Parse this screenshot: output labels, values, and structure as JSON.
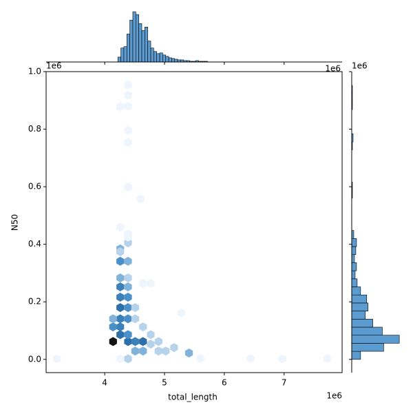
{
  "chart_data": [
    {
      "type": "hexbin",
      "xlabel": "total_length",
      "ylabel": "N50",
      "x_offset_label": "1e6",
      "y_offset_label": "1e6",
      "xlim": [
        3.02,
        7.97
      ],
      "ylim": [
        -0.046,
        1.0
      ],
      "xticks": [
        4,
        5,
        6,
        7
      ],
      "yticks": [
        {
          "value": 0,
          "label": "0.0"
        },
        0.2,
        0.4,
        0.6,
        0.8,
        {
          "value": 1,
          "label": "1.0"
        }
      ],
      "cmap": [
        "#eef5fc",
        "#4a90c8",
        "#1f5f99",
        "#111111"
      ],
      "x": [
        4.14,
        4.39,
        4.64,
        4.51,
        4.26,
        4.39,
        4.26,
        4.14,
        4.39,
        4.26,
        4.14,
        4.39,
        4.26,
        4.39,
        4.26,
        4.39,
        4.26,
        4.39,
        4.26,
        4.39,
        4.26,
        4.26,
        4.39,
        4.26,
        4.39,
        4.9,
        5.02,
        5.41,
        4.77,
        4.9,
        4.64,
        4.51,
        4.64,
        4.77,
        4.51,
        4.77,
        5.16,
        4.39,
        4.64,
        4.51,
        4.26,
        4.39,
        4.39,
        4.39,
        4.39,
        4.39,
        4.26,
        4.39,
        4.6,
        4.26,
        4.39,
        3.2,
        6.44,
        6.97,
        7.72,
        5.28,
        5.6
      ],
      "y": [
        0.062,
        0.062,
        0.062,
        0.062,
        0.086,
        0.086,
        0.113,
        0.113,
        0.141,
        0.141,
        0.141,
        0.18,
        0.18,
        0.216,
        0.216,
        0.252,
        0.252,
        0.283,
        0.283,
        0.341,
        0.341,
        0.384,
        0.405,
        0.374,
        0.436,
        0.029,
        0.029,
        0.022,
        0.086,
        0.062,
        0.113,
        0.141,
        0.264,
        0.264,
        0.18,
        0.053,
        0.041,
        0.002,
        0.029,
        0.029,
        0.002,
        0.954,
        0.88,
        0.796,
        0.755,
        0.599,
        0.459,
        0.425,
        0.557,
        0.878,
        0.918,
        0.002,
        0.002,
        0.002,
        0.002,
        0.161,
        0.002
      ],
      "counts": [
        10,
        6,
        6,
        5,
        6,
        4,
        5,
        4,
        4,
        5,
        3,
        4,
        6,
        4,
        5,
        3,
        5,
        2,
        3,
        3,
        4,
        3,
        2,
        2,
        1,
        2,
        2,
        3,
        2,
        2,
        2,
        2,
        1,
        1,
        2,
        2,
        2,
        2,
        3,
        3,
        1,
        1,
        1,
        1,
        1,
        1,
        1,
        1,
        1,
        1,
        1,
        1,
        1,
        1,
        1,
        1,
        1
      ]
    },
    {
      "type": "histogram",
      "orientation": "vertical",
      "offset_label": "1e6",
      "color": "#5b9bd0",
      "ylim": [
        0,
        75
      ],
      "bins": [
        4.22,
        4.27,
        4.32,
        4.37,
        4.42,
        4.47,
        4.52,
        4.57,
        4.62,
        4.67,
        4.72,
        4.77,
        4.82,
        4.87,
        4.92,
        4.97,
        5.02,
        5.07,
        5.12,
        5.17,
        5.22,
        5.27,
        5.32,
        5.37,
        5.42,
        5.47,
        5.52,
        5.57,
        5.62,
        5.67,
        5.72
      ],
      "counts": [
        7,
        20,
        22,
        40,
        60,
        72,
        68,
        55,
        45,
        50,
        30,
        20,
        15,
        12,
        13,
        10,
        8,
        6,
        5,
        4,
        3,
        3,
        2,
        2,
        1,
        1,
        2,
        1,
        1,
        1
      ]
    },
    {
      "type": "histogram",
      "orientation": "horizontal",
      "offset_label": "1e6",
      "color": "#5b9bd0",
      "xlim": [
        0,
        80
      ],
      "bins": [
        0,
        0.028,
        0.056,
        0.084,
        0.112,
        0.14,
        0.168,
        0.196,
        0.224,
        0.252,
        0.28,
        0.308,
        0.336,
        0.364,
        0.392,
        0.42,
        0.448,
        0.476,
        0.504,
        0.532,
        0.56,
        0.588,
        0.616,
        0.644,
        0.672,
        0.7,
        0.728,
        0.756,
        0.784,
        0.812,
        0.84,
        0.868,
        0.896,
        0.924,
        0.952
      ],
      "counts": [
        13,
        47,
        70,
        45,
        31,
        20,
        24,
        22,
        13,
        8,
        5,
        7,
        4,
        6,
        7,
        3,
        0,
        0,
        0,
        0,
        1,
        1,
        0,
        0,
        0,
        0,
        1,
        2,
        0,
        0,
        0,
        1,
        1,
        1
      ]
    }
  ]
}
